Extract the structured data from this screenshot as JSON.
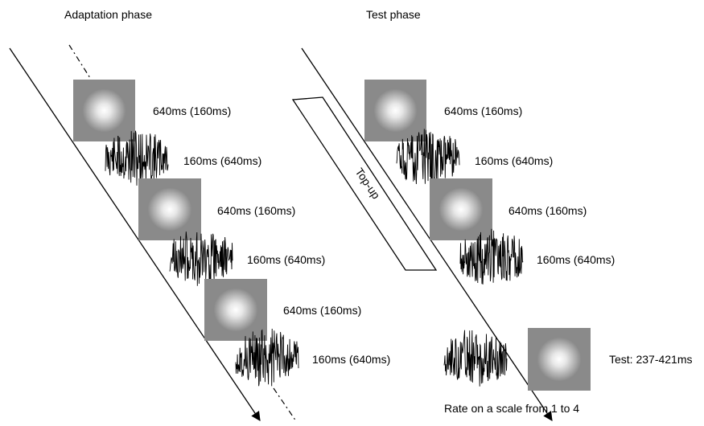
{
  "adaptation": {
    "title": "Adaptation phase",
    "trials": [
      {
        "gabor_label": "640ms (160ms)",
        "noise_label": "160ms (640ms)"
      },
      {
        "gabor_label": "640ms (160ms)",
        "noise_label": "160ms (640ms)"
      },
      {
        "gabor_label": "640ms (160ms)",
        "noise_label": "160ms (640ms)"
      }
    ]
  },
  "test": {
    "title": "Test phase",
    "topup_label": "Top-up",
    "trials": [
      {
        "gabor_label": "640ms (160ms)",
        "noise_label": "160ms (640ms)"
      },
      {
        "gabor_label": "640ms (160ms)",
        "noise_label": "160ms (640ms)"
      }
    ],
    "test_label": "Test: 237-421ms",
    "rating_label": "Rate on a scale from 1 to 4"
  },
  "colors": {
    "stimulus_background": "#8a8a8a",
    "blob_center": "#ffffff",
    "line": "#000000"
  }
}
